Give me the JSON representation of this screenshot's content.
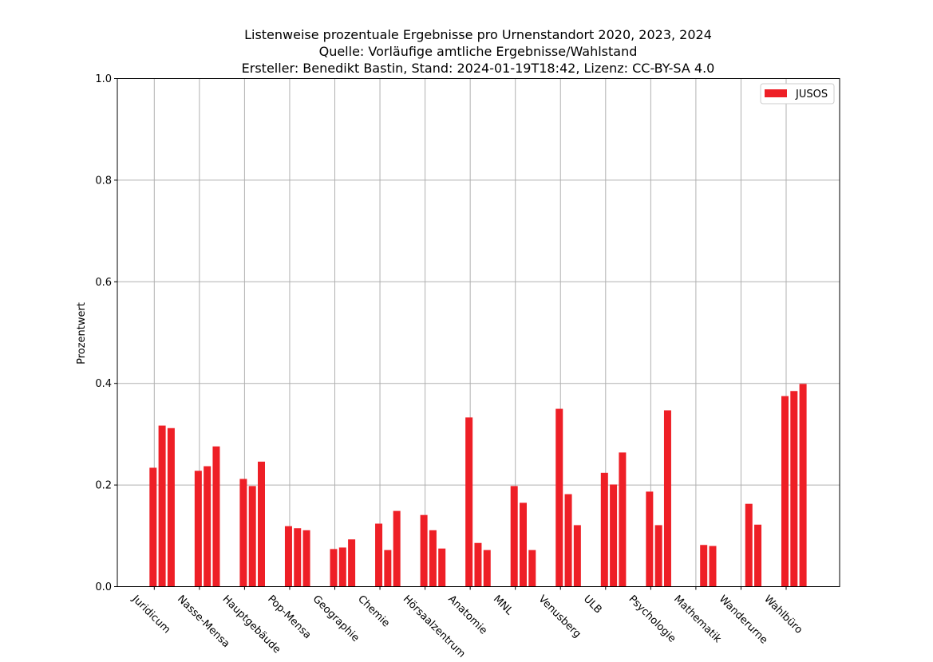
{
  "chart_data": {
    "type": "bar",
    "title_lines": [
      "Listenweise prozentuale Ergebnisse pro Urnenstandort 2020, 2023, 2024",
      "Quelle: Vorläufige amtliche Ergebnisse/Wahlstand",
      "Ersteller: Benedikt Bastin, Stand: 2024-01-19T18:42, Lizenz: CC-BY-SA 4.0"
    ],
    "xlabel": "",
    "ylabel": "Prozentwert",
    "ylim": [
      0,
      1.0
    ],
    "yticks": [
      "0.0",
      "0.2",
      "0.4",
      "0.6",
      "0.8",
      "1.0"
    ],
    "grid": true,
    "legend": {
      "placement": "top-right",
      "entries": [
        "JUSOS"
      ]
    },
    "color": "#ee1f26",
    "bar_years": [
      "2020",
      "2023",
      "2024"
    ],
    "categories": [
      "Juridicum",
      "Nasse-Mensa",
      "Hauptgebäude",
      "Pop-Mensa",
      "Geographie",
      "Chemie",
      "Hörsaalzentrum",
      "Anatomie",
      "MNL",
      "Venusberg",
      "ULB",
      "Psychologie",
      "Mathematik",
      "Wanderurne",
      "Wahlbüro"
    ],
    "series": [
      {
        "name": "JUSOS",
        "values": [
          [
            0.234,
            0.317,
            0.312
          ],
          [
            0.228,
            0.237,
            0.276
          ],
          [
            0.212,
            0.198,
            0.246
          ],
          [
            0.119,
            0.115,
            0.111
          ],
          [
            0.074,
            0.077,
            0.093
          ],
          [
            0.124,
            0.072,
            0.149
          ],
          [
            0.141,
            0.111,
            0.075
          ],
          [
            0.333,
            0.086,
            0.072
          ],
          [
            0.198,
            0.165,
            0.072
          ],
          [
            0.35,
            0.182,
            0.121
          ],
          [
            0.224,
            0.201,
            0.264
          ],
          [
            0.187,
            0.121,
            0.347
          ],
          [
            null,
            0.082,
            0.08
          ],
          [
            null,
            0.163,
            0.122
          ],
          [
            0.375,
            0.385,
            0.399
          ]
        ]
      }
    ]
  }
}
